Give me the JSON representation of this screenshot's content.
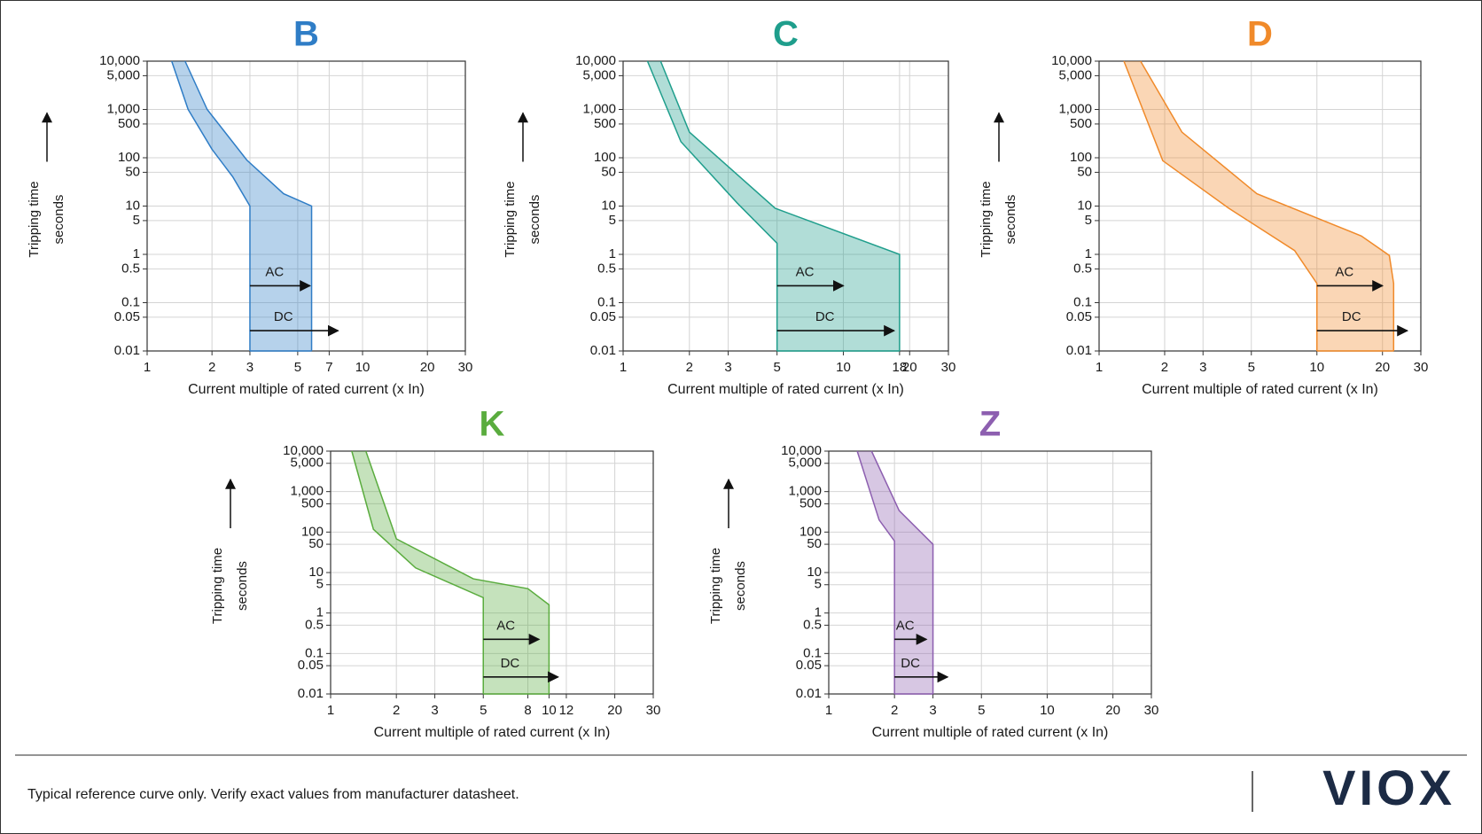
{
  "chart_data": [
    {
      "type": "band",
      "title": "B",
      "color": "#2f7dc6",
      "xlabel": "Current multiple of rated current (x In)",
      "ylabel": "Tripping time",
      "yunit": "seconds",
      "xscale": "log",
      "yscale": "log",
      "xlim": [
        1,
        30
      ],
      "ylim": [
        0.01,
        10000
      ],
      "grid": true,
      "xticks": [
        1,
        2,
        3,
        5,
        7,
        10,
        20,
        30
      ],
      "yticks": [
        {
          "value": 10000,
          "label": "10,000"
        },
        {
          "value": 5000,
          "label": "5,000"
        },
        {
          "value": 1000,
          "label": "1,000"
        },
        500,
        100,
        50,
        10,
        5,
        1,
        0.5,
        0.1,
        0.05,
        0.01
      ],
      "curves": [
        {
          "x": [
            1.3,
            1.55,
            2.0,
            2.5,
            3,
            3
          ],
          "y": [
            10000,
            1000,
            150,
            40,
            10,
            0.01
          ]
        },
        {
          "x": [
            1.5,
            1.9,
            2.9,
            4.3,
            5.8,
            5.8
          ],
          "y": [
            10000,
            1000,
            90,
            18,
            10,
            0.01
          ]
        }
      ],
      "annotations": [
        {
          "text": "AC",
          "from": 3,
          "to": 5.7
        },
        {
          "text": "DC",
          "from": 3,
          "to": 7.7
        }
      ]
    },
    {
      "type": "band",
      "title": "C",
      "color": "#1f9e8c",
      "xlabel": "Current multiple of rated current (x In)",
      "ylabel": "Tripping time",
      "yunit": "seconds",
      "xscale": "log",
      "yscale": "log",
      "xlim": [
        1,
        30
      ],
      "ylim": [
        0.01,
        10000
      ],
      "grid": true,
      "xticks": [
        1,
        2,
        3,
        5,
        10,
        18,
        20,
        30
      ],
      "yticks": [
        {
          "value": 10000,
          "label": "10,000"
        },
        {
          "value": 5000,
          "label": "5,000"
        },
        {
          "value": 1000,
          "label": "1,000"
        },
        500,
        100,
        50,
        10,
        5,
        1,
        0.5,
        0.1,
        0.05,
        0.01
      ],
      "curves": [
        {
          "x": [
            1.29,
            1.83,
            3.3,
            5,
            5
          ],
          "y": [
            10000,
            215,
            11.5,
            1.7,
            0.01
          ]
        },
        {
          "x": [
            1.48,
            2.0,
            4.9,
            18,
            18
          ],
          "y": [
            10000,
            340,
            9,
            1,
            0.01
          ]
        }
      ],
      "annotations": [
        {
          "text": "AC",
          "from": 5,
          "to": 10
        },
        {
          "text": "DC",
          "from": 5,
          "to": 17
        }
      ]
    },
    {
      "type": "band",
      "title": "D",
      "color": "#f08a2a",
      "xlabel": "Current multiple of rated current (x In)",
      "ylabel": "Tripping time",
      "yunit": "seconds",
      "xscale": "log",
      "yscale": "log",
      "xlim": [
        1,
        30
      ],
      "ylim": [
        0.01,
        10000
      ],
      "grid": true,
      "xticks": [
        1,
        2,
        3,
        5,
        10,
        20,
        30
      ],
      "yticks": [
        {
          "value": 10000,
          "label": "10,000"
        },
        {
          "value": 5000,
          "label": "5,000"
        },
        {
          "value": 1000,
          "label": "1,000"
        },
        500,
        100,
        50,
        10,
        5,
        1,
        0.5,
        0.1,
        0.05,
        0.01
      ],
      "curves": [
        {
          "x": [
            1.3,
            1.96,
            3.94,
            7.9,
            10,
            10
          ],
          "y": [
            10000,
            87,
            9,
            1.2,
            0.25,
            0.01
          ]
        },
        {
          "x": [
            1.55,
            2.4,
            5.3,
            16,
            21.5,
            22.5,
            22.5
          ],
          "y": [
            10000,
            340,
            18,
            2.4,
            0.95,
            0.25,
            0.01
          ]
        }
      ],
      "annotations": [
        {
          "text": "AC",
          "from": 10,
          "to": 20
        },
        {
          "text": "DC",
          "from": 10,
          "to": 26
        }
      ]
    },
    {
      "type": "band",
      "title": "K",
      "color": "#5aac3e",
      "xlabel": "Current multiple of rated current (x In)",
      "ylabel": "Tripping time",
      "yunit": "seconds",
      "xscale": "log",
      "yscale": "log",
      "xlim": [
        1,
        30
      ],
      "ylim": [
        0.01,
        10000
      ],
      "grid": true,
      "xticks": [
        1,
        2,
        3,
        5,
        8,
        10,
        12,
        20,
        30
      ],
      "yticks": [
        {
          "value": 10000,
          "label": "10,000"
        },
        {
          "value": 5000,
          "label": "5,000"
        },
        {
          "value": 1000,
          "label": "1,000"
        },
        500,
        100,
        50,
        10,
        5,
        1,
        0.5,
        0.1,
        0.05,
        0.01
      ],
      "curves": [
        {
          "x": [
            1.25,
            1.57,
            2.45,
            5,
            5
          ],
          "y": [
            10000,
            117,
            13,
            2.4,
            0.01
          ]
        },
        {
          "x": [
            1.45,
            2.0,
            4.5,
            8,
            10,
            10
          ],
          "y": [
            10000,
            68,
            7,
            4,
            1.6,
            0.01
          ]
        }
      ],
      "annotations": [
        {
          "text": "AC",
          "from": 5,
          "to": 9
        },
        {
          "text": "DC",
          "from": 5,
          "to": 11
        }
      ]
    },
    {
      "type": "band",
      "title": "Z",
      "color": "#8d5fb0",
      "xlabel": "Current multiple of rated current (x In)",
      "ylabel": "Tripping time",
      "yunit": "seconds",
      "xscale": "log",
      "yscale": "log",
      "xlim": [
        1,
        30
      ],
      "ylim": [
        0.01,
        10000
      ],
      "grid": true,
      "xticks": [
        1,
        2,
        3,
        5,
        10,
        20,
        30
      ],
      "yticks": [
        {
          "value": 10000,
          "label": "10,000"
        },
        {
          "value": 5000,
          "label": "5,000"
        },
        {
          "value": 1000,
          "label": "1,000"
        },
        500,
        100,
        50,
        10,
        5,
        1,
        0.5,
        0.1,
        0.05,
        0.01
      ],
      "curves": [
        {
          "x": [
            1.35,
            1.7,
            2,
            2
          ],
          "y": [
            10000,
            200,
            60,
            0.01
          ]
        },
        {
          "x": [
            1.57,
            2.1,
            3,
            3
          ],
          "y": [
            10000,
            340,
            50,
            0.01
          ]
        }
      ],
      "annotations": [
        {
          "text": "AC",
          "from": 2,
          "to": 2.8
        },
        {
          "text": "DC",
          "from": 2,
          "to": 3.5
        }
      ]
    }
  ],
  "footer": {
    "note": "Typical reference curve only. Verify exact values from manufacturer datasheet.",
    "logo": "VIOX"
  }
}
